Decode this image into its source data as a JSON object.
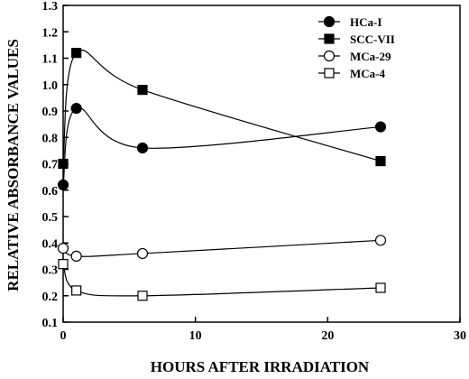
{
  "chart_data": {
    "type": "line",
    "xlabel": "HOURS AFTER IRRADIATION",
    "ylabel": "RELATIVE ABSORBANCE VALUES",
    "xlim": [
      0,
      30
    ],
    "ylim": [
      0.1,
      1.3
    ],
    "x_ticks": [
      "0",
      "10",
      "20",
      "30"
    ],
    "y_ticks": [
      "0.1",
      "0.2",
      "0.3",
      "0.4",
      "0.5",
      "0.6",
      "0.7",
      "0.8",
      "0.9",
      "1.0",
      "1.1",
      "1.2",
      "1.3"
    ],
    "grid": false,
    "legend_position": "top-right",
    "series": [
      {
        "name": "HCa-I",
        "marker": "filled-circle",
        "x": [
          0,
          1,
          6,
          24
        ],
        "y": [
          0.62,
          0.91,
          0.76,
          0.84
        ]
      },
      {
        "name": "SCC-VII",
        "marker": "filled-square",
        "x": [
          0,
          1,
          6,
          24
        ],
        "y": [
          0.7,
          1.12,
          0.98,
          0.71
        ]
      },
      {
        "name": "MCa-29",
        "marker": "open-circle",
        "x": [
          0,
          1,
          6,
          24
        ],
        "y": [
          0.38,
          0.35,
          0.36,
          0.41
        ]
      },
      {
        "name": "MCa-4",
        "marker": "open-square",
        "x": [
          0,
          1,
          6,
          24
        ],
        "y": [
          0.32,
          0.22,
          0.2,
          0.23
        ]
      }
    ]
  }
}
